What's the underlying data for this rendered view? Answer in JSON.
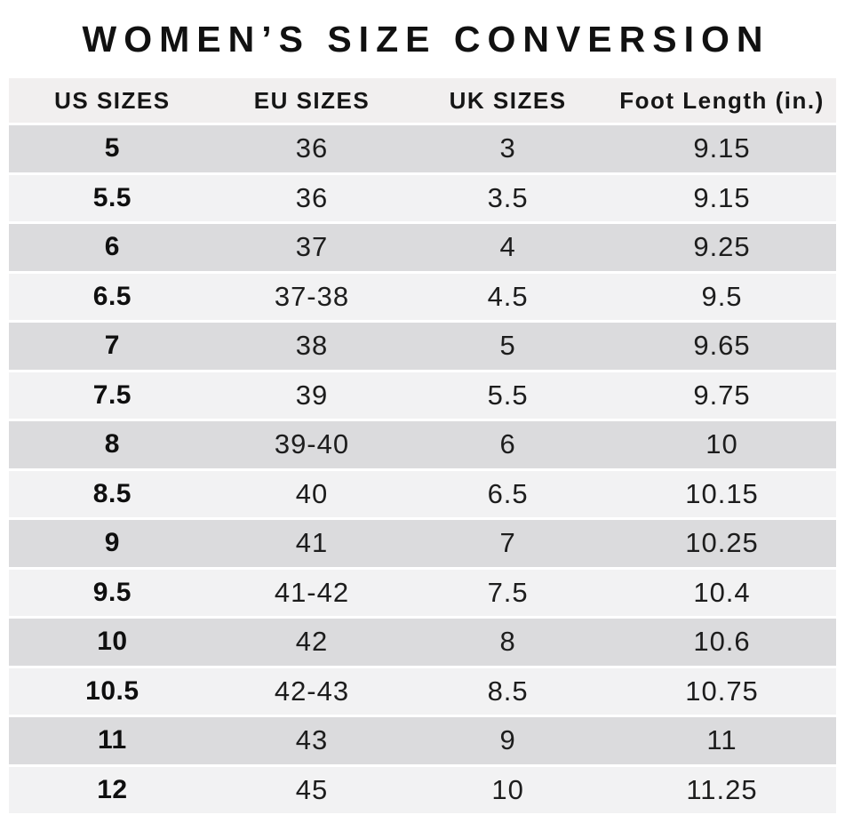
{
  "title": "WOMEN’S SIZE CONVERSION",
  "colors": {
    "page_bg": "#ffffff",
    "header_row_bg": "#f1efef",
    "row_dark_bg": "#dbdbdd",
    "row_light_bg": "#f2f2f3",
    "title_text": "#111111",
    "body_text": "#1d1d1d"
  },
  "chart_data": {
    "type": "table",
    "title": "WOMEN’S SIZE CONVERSION",
    "columns": [
      "US SIZES",
      "EU SIZES",
      "UK SIZES",
      "Foot Length (in.)"
    ],
    "rows": [
      [
        "5",
        "36",
        "3",
        "9.15"
      ],
      [
        "5.5",
        "36",
        "3.5",
        "9.15"
      ],
      [
        "6",
        "37",
        "4",
        "9.25"
      ],
      [
        "6.5",
        "37-38",
        "4.5",
        "9.5"
      ],
      [
        "7",
        "38",
        "5",
        "9.65"
      ],
      [
        "7.5",
        "39",
        "5.5",
        "9.75"
      ],
      [
        "8",
        "39-40",
        "6",
        "10"
      ],
      [
        "8.5",
        "40",
        "6.5",
        "10.15"
      ],
      [
        "9",
        "41",
        "7",
        "10.25"
      ],
      [
        "9.5",
        "41-42",
        "7.5",
        "10.4"
      ],
      [
        "10",
        "42",
        "8",
        "10.6"
      ],
      [
        "10.5",
        "42-43",
        "8.5",
        "10.75"
      ],
      [
        "11",
        "43",
        "9",
        "11"
      ],
      [
        "12",
        "45",
        "10",
        "11.25"
      ]
    ]
  }
}
